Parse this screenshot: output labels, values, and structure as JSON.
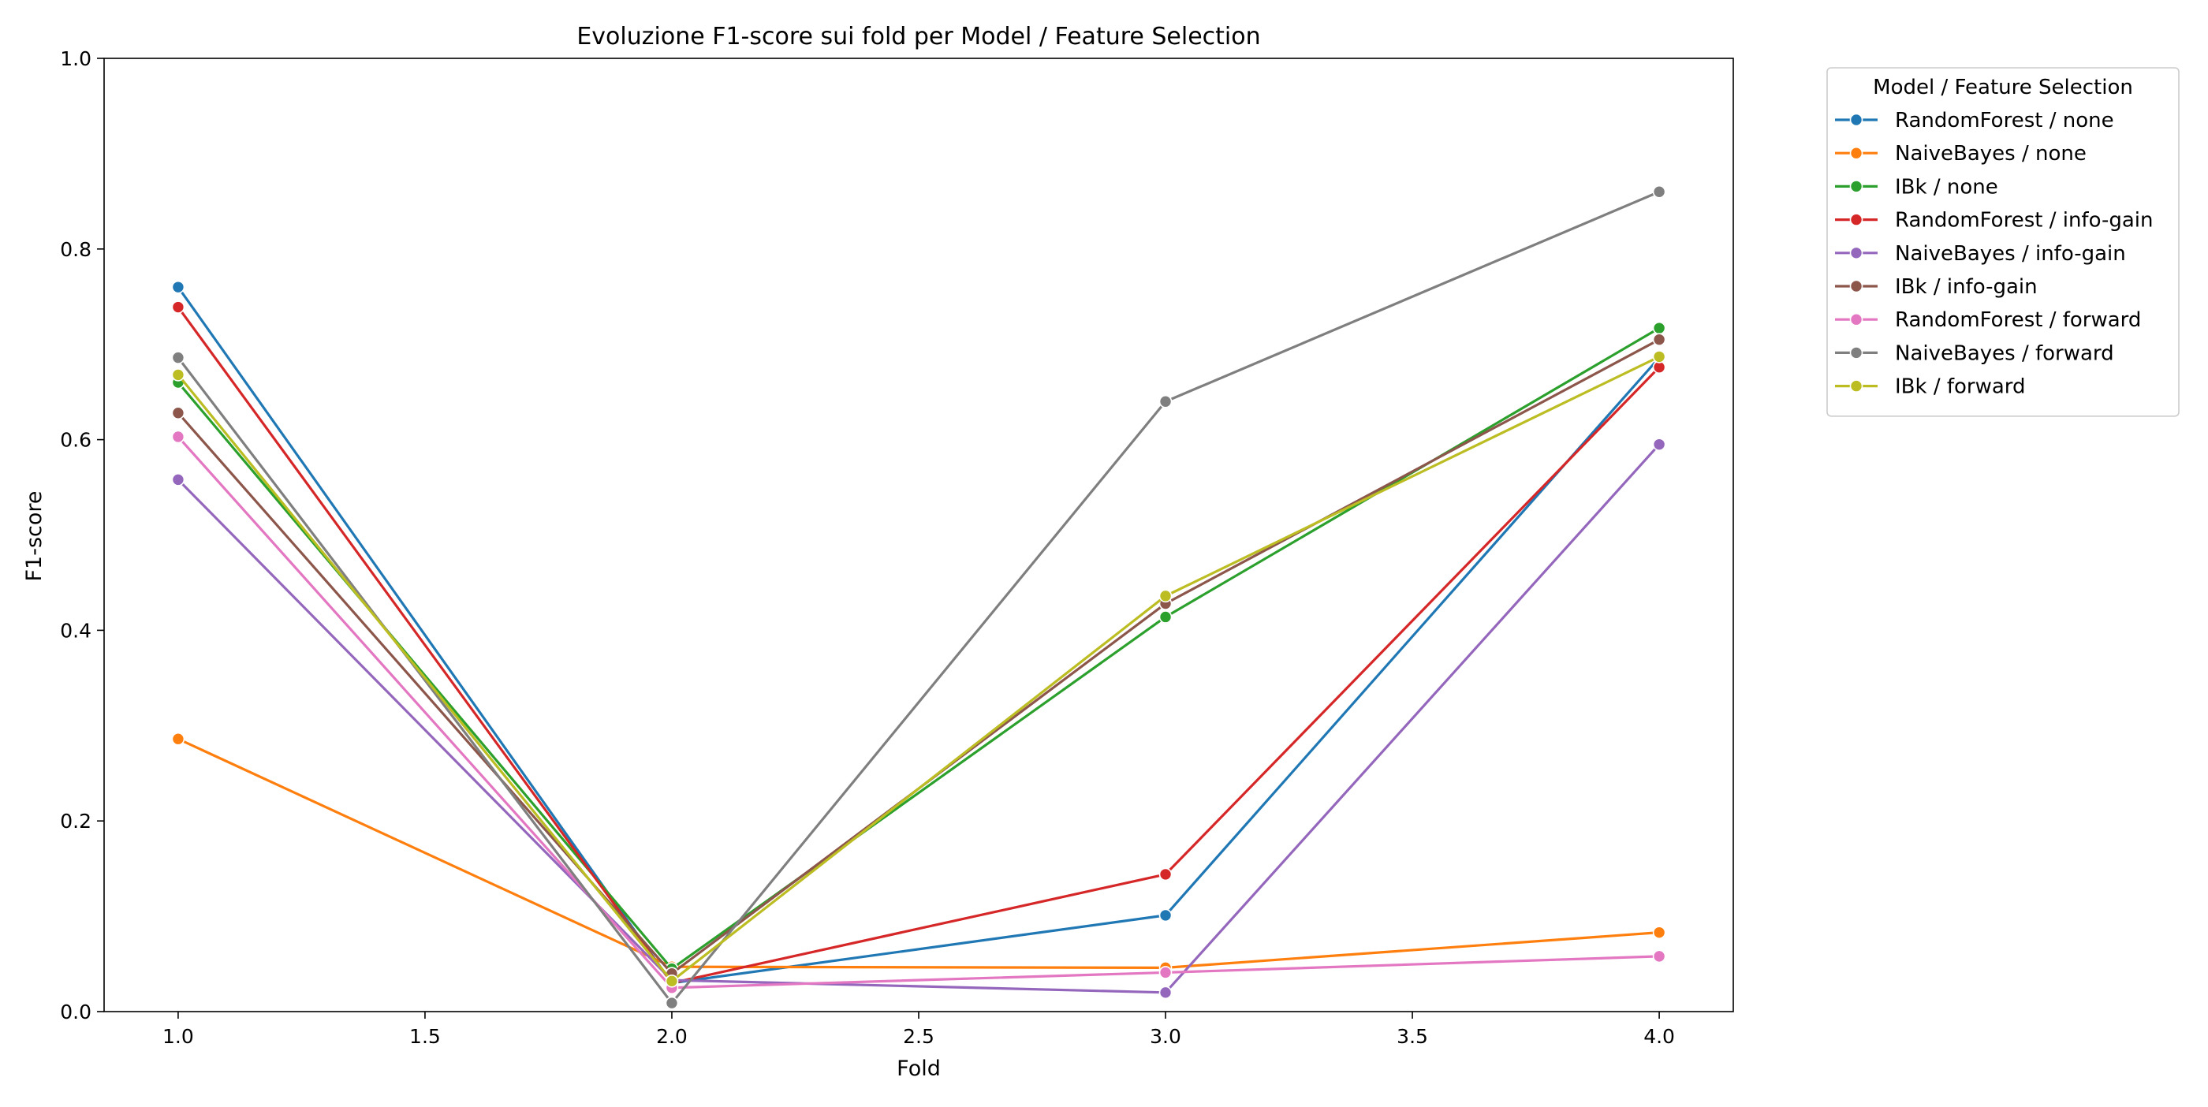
{
  "chart_data": {
    "type": "line",
    "title": "Evoluzione F1-score sui fold per Model / Feature Selection",
    "xlabel": "Fold",
    "ylabel": "F1-score",
    "x": [
      1.0,
      2.0,
      3.0,
      4.0
    ],
    "xlim": [
      0.85,
      4.15
    ],
    "ylim": [
      0.0,
      1.0
    ],
    "x_ticks": [
      "1.0",
      "1.5",
      "2.0",
      "2.5",
      "3.0",
      "3.5",
      "4.0"
    ],
    "y_ticks": [
      "0.0",
      "0.2",
      "0.4",
      "0.6",
      "0.8",
      "1.0"
    ],
    "grid": false,
    "legend": {
      "title": "Model / Feature Selection",
      "placement": "outside-top-right"
    },
    "series": [
      {
        "name": "RandomForest / none",
        "color": "#1f77b4",
        "values": [
          0.76,
          0.03,
          0.101,
          0.686
        ]
      },
      {
        "name": "NaiveBayes / none",
        "color": "#ff7f0e",
        "values": [
          0.286,
          0.047,
          0.046,
          0.083
        ]
      },
      {
        "name": "IBk / none",
        "color": "#2ca02c",
        "values": [
          0.66,
          0.045,
          0.414,
          0.717
        ]
      },
      {
        "name": "RandomForest / info-gain",
        "color": "#d62728",
        "values": [
          0.739,
          0.03,
          0.144,
          0.676
        ]
      },
      {
        "name": "NaiveBayes / info-gain",
        "color": "#9467bd",
        "values": [
          0.558,
          0.033,
          0.02,
          0.595
        ]
      },
      {
        "name": "IBk / info-gain",
        "color": "#8c564b",
        "values": [
          0.628,
          0.04,
          0.428,
          0.705
        ]
      },
      {
        "name": "RandomForest / forward",
        "color": "#e377c2",
        "values": [
          0.603,
          0.025,
          0.041,
          0.058
        ]
      },
      {
        "name": "NaiveBayes / forward",
        "color": "#7f7f7f",
        "values": [
          0.686,
          0.009,
          0.64,
          0.86
        ]
      },
      {
        "name": "IBk / forward",
        "color": "#bcbd22",
        "values": [
          0.668,
          0.032,
          0.436,
          0.687
        ]
      }
    ]
  }
}
